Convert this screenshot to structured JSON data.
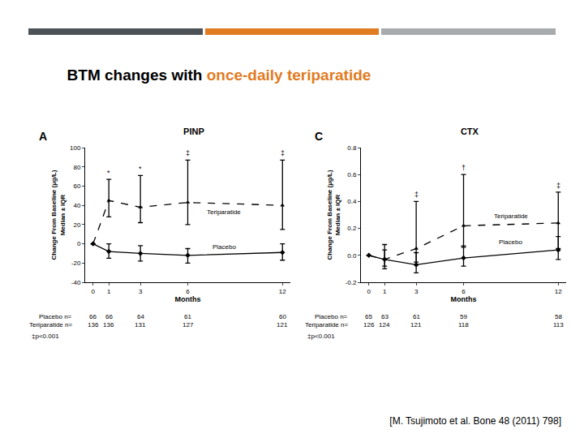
{
  "slide": {
    "title_parts": [
      {
        "text": "BTM changes with ",
        "color": "#000000"
      },
      {
        "text": "once-daily teriparatide",
        "color": "#e07b22"
      }
    ],
    "citation": "[M. Tsujimoto et al. Bone 48 (2011) 798]"
  },
  "chart_data": [
    {
      "type": "line",
      "panel": "A",
      "title": "PINP",
      "xlabel": "Months",
      "ylabel": [
        "Change From Baseline (µg/L)",
        "Median ± IQR"
      ],
      "x": [
        0,
        1,
        3,
        6,
        12
      ],
      "xlim": [
        -0.5,
        12.5
      ],
      "xticks": [
        0,
        1,
        3,
        6,
        12
      ],
      "ylim": [
        -40,
        100
      ],
      "yticks": [
        -40,
        -20,
        0,
        20,
        40,
        60,
        80,
        100
      ],
      "series": [
        {
          "name": "Teriparatide",
          "color": "#000000",
          "line_style": "dash",
          "marker": "triangle-up",
          "values": [
            0,
            45,
            38,
            43,
            40
          ],
          "error_plus": [
            0,
            22,
            33,
            44,
            47
          ],
          "error_minus": [
            0,
            17,
            16,
            23,
            25
          ],
          "significance": [
            null,
            "*",
            "*",
            "‡",
            "‡"
          ],
          "label_x": 8.3,
          "label_y": 33
        },
        {
          "name": "Placebo",
          "color": "#000000",
          "line_style": "solid",
          "marker": "diamond",
          "values": [
            0,
            -8,
            -10,
            -12,
            -9
          ],
          "error_plus": [
            0,
            8,
            8,
            7,
            9
          ],
          "error_minus": [
            0,
            7,
            8,
            8,
            8
          ],
          "label_x": 8.3,
          "label_y": -3
        }
      ],
      "n_table": [
        {
          "label": "Placebo n=",
          "values": [
            66,
            66,
            64,
            61,
            60
          ]
        },
        {
          "label": "Teriparatide n=",
          "values": [
            136,
            136,
            131,
            127,
            121
          ]
        }
      ],
      "footnote": "‡p<0.001"
    },
    {
      "type": "line",
      "panel": "C",
      "title": "CTX",
      "xlabel": "Months",
      "ylabel": [
        "Change From Baseline (µg/L)",
        "Median ± IQR"
      ],
      "x": [
        0,
        1,
        3,
        6,
        12
      ],
      "xlim": [
        -0.5,
        12.5
      ],
      "xticks": [
        0,
        1,
        3,
        6,
        12
      ],
      "ylim": [
        -0.2,
        0.8
      ],
      "yticks": [
        -0.2,
        {
          "value": 0,
          "label": "0.0"
        },
        0.2,
        0.4,
        0.6,
        0.8
      ],
      "series": [
        {
          "name": "Teriparatide",
          "color": "#000000",
          "line_style": "dash",
          "marker": "triangle-up",
          "values": [
            0,
            -0.03,
            0.05,
            0.22,
            0.24
          ],
          "error_plus": [
            0,
            0.11,
            0.35,
            0.38,
            0.23
          ],
          "error_minus": [
            0,
            0.05,
            0.1,
            0.16,
            0.19
          ],
          "significance": [
            null,
            null,
            "‡",
            "†",
            "‡"
          ],
          "label_x": 9,
          "label_y": 0.29
        },
        {
          "name": "Placebo",
          "color": "#000000",
          "line_style": "solid",
          "marker": "diamond",
          "values": [
            0,
            -0.03,
            -0.07,
            -0.02,
            0.04
          ],
          "error_plus": [
            0,
            0.07,
            0.09,
            0.09,
            0.1
          ],
          "error_minus": [
            0,
            0.07,
            0.06,
            0.06,
            0.07
          ],
          "label_x": 9,
          "label_y": 0.1
        }
      ],
      "n_table": [
        {
          "label": "Placebo n=",
          "values": [
            65,
            63,
            61,
            59,
            58
          ]
        },
        {
          "label": "Teriparatide n=",
          "values": [
            126,
            124,
            121,
            118,
            113
          ]
        }
      ],
      "footnote": "‡p<0.001"
    }
  ]
}
